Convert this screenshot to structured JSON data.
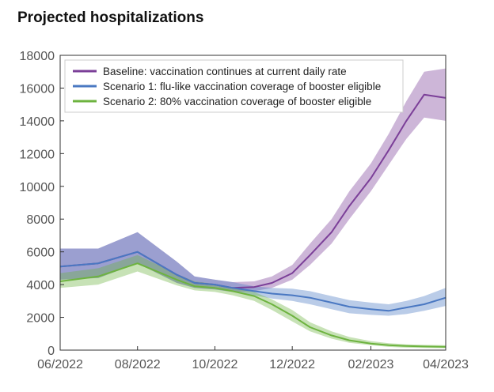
{
  "chart_data": {
    "type": "line",
    "title": "Projected hospitalizations",
    "xlabel": "",
    "ylabel": "",
    "x_ticks": [
      "06/2022",
      "08/2022",
      "10/2022",
      "12/2022",
      "02/2023",
      "04/2023"
    ],
    "y_ticks": [
      "0",
      "2000",
      "4000",
      "6000",
      "8000",
      "10000",
      "12000",
      "14000",
      "16000",
      "18000"
    ],
    "ylim": [
      0,
      18000
    ],
    "xlim": [
      "2022-06-01",
      "2023-04-01"
    ],
    "grid": false,
    "legend_position": "top-right",
    "colors": {
      "baseline": "#7b3f98",
      "scenario1": "#4a78c2",
      "scenario2": "#6db33f"
    },
    "series": [
      {
        "name": "Baseline: vaccination continues at current daily rate",
        "color": "#7b3f98",
        "x": [
          "2022-06-01",
          "2022-07-01",
          "2022-08-01",
          "2022-09-01",
          "2022-09-15",
          "2022-10-01",
          "2022-10-15",
          "2022-11-01",
          "2022-11-15",
          "2022-12-01",
          "2022-12-15",
          "2023-01-01",
          "2023-01-15",
          "2023-02-01",
          "2023-02-15",
          "2023-03-01",
          "2023-03-15",
          "2023-04-01"
        ],
        "y": [
          5100,
          5300,
          6000,
          4600,
          4100,
          4000,
          3800,
          3850,
          4100,
          4700,
          5800,
          7200,
          8800,
          10500,
          12200,
          14000,
          15600,
          15400
        ],
        "lower": [
          4300,
          4400,
          5300,
          4100,
          3800,
          3700,
          3550,
          3600,
          3800,
          4300,
          5200,
          6500,
          8000,
          9700,
          11300,
          12900,
          14200,
          14000
        ],
        "upper": [
          6200,
          6200,
          7200,
          5400,
          4500,
          4300,
          4150,
          4200,
          4500,
          5200,
          6500,
          8000,
          9700,
          11400,
          13200,
          15200,
          17000,
          17200
        ]
      },
      {
        "name": "Scenario 1: flu-like vaccination coverage of booster eligible",
        "color": "#4a78c2",
        "x": [
          "2022-06-01",
          "2022-07-01",
          "2022-08-01",
          "2022-09-01",
          "2022-09-15",
          "2022-10-01",
          "2022-10-15",
          "2022-11-01",
          "2022-11-15",
          "2022-12-01",
          "2022-12-15",
          "2023-01-01",
          "2023-01-15",
          "2023-02-01",
          "2023-02-15",
          "2023-03-01",
          "2023-03-15",
          "2023-04-01"
        ],
        "y": [
          5100,
          5300,
          6000,
          4600,
          4100,
          4000,
          3800,
          3600,
          3450,
          3350,
          3200,
          2900,
          2650,
          2500,
          2400,
          2600,
          2800,
          3200
        ],
        "lower": [
          4300,
          4400,
          5300,
          4100,
          3800,
          3700,
          3550,
          3350,
          3150,
          3000,
          2800,
          2500,
          2250,
          2150,
          2100,
          2200,
          2400,
          2700
        ],
        "upper": [
          6200,
          6200,
          7200,
          5400,
          4500,
          4300,
          4150,
          3900,
          3800,
          3750,
          3600,
          3300,
          3050,
          2900,
          2800,
          3000,
          3300,
          3800
        ]
      },
      {
        "name": "Scenario 2: 80% vaccination coverage of booster eligible",
        "color": "#6db33f",
        "x": [
          "2022-06-01",
          "2022-07-01",
          "2022-08-01",
          "2022-09-01",
          "2022-09-15",
          "2022-10-01",
          "2022-10-15",
          "2022-11-01",
          "2022-11-15",
          "2022-12-01",
          "2022-12-15",
          "2023-01-01",
          "2023-01-15",
          "2023-02-01",
          "2023-02-15",
          "2023-03-01",
          "2023-03-15",
          "2023-04-01"
        ],
        "y": [
          4200,
          4500,
          5300,
          4300,
          3900,
          3800,
          3600,
          3300,
          2800,
          2100,
          1400,
          900,
          600,
          400,
          300,
          250,
          220,
          200
        ],
        "lower": [
          3800,
          4000,
          4800,
          3950,
          3650,
          3550,
          3350,
          3000,
          2450,
          1750,
          1150,
          700,
          450,
          300,
          200,
          150,
          130,
          120
        ],
        "upper": [
          4700,
          5000,
          5800,
          4650,
          4200,
          4050,
          3850,
          3550,
          3100,
          2450,
          1700,
          1150,
          800,
          550,
          420,
          350,
          320,
          300
        ]
      }
    ]
  }
}
